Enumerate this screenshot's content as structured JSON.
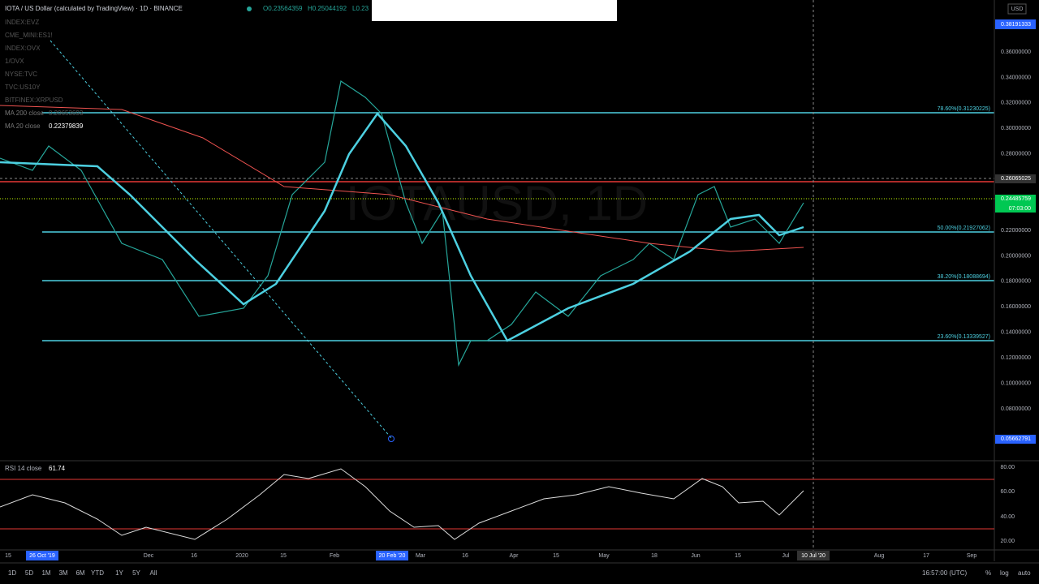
{
  "header": {
    "symbol": "IOTA / US Dollar (calculated by TradingView) · 1D · BINANCE",
    "open": "O0.23564359",
    "high": "H0.25044192",
    "low": "L0.23"
  },
  "overlays": [
    "INDEX:EVZ",
    "CME_MINI:ES1!",
    "INDEX:OVX",
    "1/OVX",
    "NYSE:TVC",
    "TVC:US10Y",
    "BITFINEX:XRPUSD"
  ],
  "moving_averages": [
    {
      "name": "MA 200 close",
      "value": "0.20653693"
    },
    {
      "name": "MA 20 close",
      "value": "0.22379839"
    }
  ],
  "fib_levels": [
    "78.60%(0.31230225)",
    "50.00%(0.21927062)",
    "38.20%(0.18088694)",
    "23.60%(0.13339527)"
  ],
  "price_axis": {
    "currency": "USD",
    "top": "0.38191333",
    "ticks": [
      "0.36000000",
      "0.34000000",
      "0.32000000",
      "0.30000000",
      "0.28000000",
      "0.22000000",
      "0.20000000",
      "0.18000000",
      "0.16000000",
      "0.14000000",
      "0.12000000",
      "0.10000000",
      "0.08000000"
    ],
    "last": "0.24485759",
    "countdown": "07:03:00",
    "crosshair": "0.26065025",
    "low_marker": "0.05662791"
  },
  "rsi": {
    "label": "RSI 14 close",
    "value": "61.74",
    "ticks": [
      "80.00",
      "60.00",
      "40.00",
      "20.00"
    ]
  },
  "time_axis": [
    "15",
    "26 Oct '19",
    "Dec",
    "16",
    "2020",
    "15",
    "Feb",
    "20 Feb '20",
    "Mar",
    "16",
    "Apr",
    "15",
    "May",
    "18",
    "Jun",
    "15",
    "Jul",
    "10 Jul '20",
    "Aug",
    "17",
    "Sep"
  ],
  "bottom_bar": {
    "ranges": [
      "1D",
      "5D",
      "1M",
      "3M",
      "6M",
      "YTD",
      "1Y",
      "5Y",
      "All"
    ],
    "clock": "16:57:00 (UTC)",
    "percent": "%",
    "log": "log",
    "auto": "auto"
  }
}
